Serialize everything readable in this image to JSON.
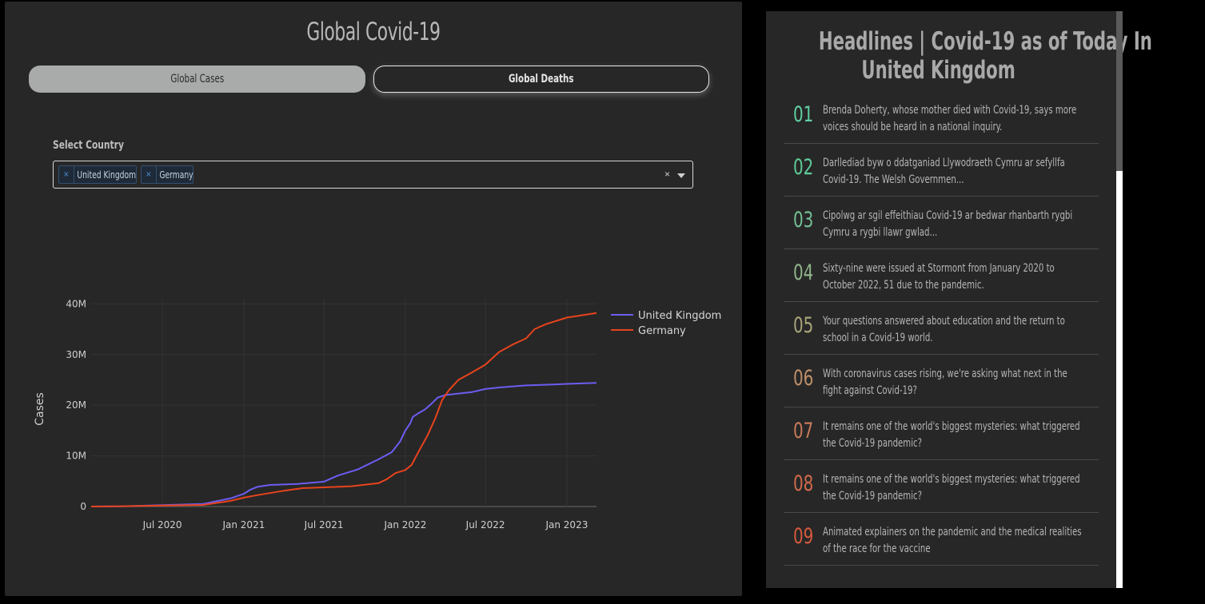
{
  "left": {
    "title": "Global Covid-19",
    "tabs": [
      {
        "label": "Global Cases",
        "active": true
      },
      {
        "label": "Global Deaths",
        "active": false
      }
    ],
    "select_label": "Select Country",
    "selected_countries": [
      "United Kingdom",
      "Germany"
    ],
    "clear_glyph": "×",
    "chip_remove_glyph": "×"
  },
  "chart_data": {
    "type": "line",
    "ylabel": "Cases",
    "xlabel": "",
    "y_tick_labels": [
      "0",
      "10M",
      "20M",
      "30M",
      "40M"
    ],
    "y_tick_values": [
      0,
      10000000,
      20000000,
      30000000,
      40000000
    ],
    "x_tick_labels": [
      "Jul 2020",
      "Jan 2021",
      "Jul 2021",
      "Jan 2022",
      "Jul 2022",
      "Jan 2023"
    ],
    "x_tick_dates": [
      "2020-07-01",
      "2021-01-01",
      "2021-07-01",
      "2022-01-01",
      "2022-07-01",
      "2023-01-01"
    ],
    "xlim": [
      "2020-01-22",
      "2023-03-09"
    ],
    "ylim": [
      0,
      41000000
    ],
    "legend_position": "top-right",
    "grid": true,
    "series": [
      {
        "name": "United Kingdom",
        "color": "#6c5df2",
        "points": [
          [
            "2020-01-22",
            0
          ],
          [
            "2020-04-01",
            30000
          ],
          [
            "2020-07-01",
            290000
          ],
          [
            "2020-10-01",
            500000
          ],
          [
            "2020-12-01",
            1600000
          ],
          [
            "2021-01-01",
            2500000
          ],
          [
            "2021-01-15",
            3300000
          ],
          [
            "2021-02-01",
            3900000
          ],
          [
            "2021-03-01",
            4250000
          ],
          [
            "2021-05-01",
            4450000
          ],
          [
            "2021-07-01",
            4900000
          ],
          [
            "2021-08-01",
            6100000
          ],
          [
            "2021-09-15",
            7300000
          ],
          [
            "2021-11-01",
            9300000
          ],
          [
            "2021-12-01",
            10700000
          ],
          [
            "2021-12-20",
            12800000
          ],
          [
            "2022-01-01",
            15000000
          ],
          [
            "2022-01-12",
            16400000
          ],
          [
            "2022-01-18",
            17700000
          ],
          [
            "2022-02-01",
            18500000
          ],
          [
            "2022-02-15",
            19200000
          ],
          [
            "2022-03-01",
            20300000
          ],
          [
            "2022-03-15",
            21500000
          ],
          [
            "2022-04-01",
            22000000
          ],
          [
            "2022-05-01",
            22300000
          ],
          [
            "2022-06-01",
            22600000
          ],
          [
            "2022-07-01",
            23200000
          ],
          [
            "2022-08-01",
            23500000
          ],
          [
            "2022-10-01",
            23900000
          ],
          [
            "2022-12-01",
            24100000
          ],
          [
            "2023-01-01",
            24200000
          ],
          [
            "2023-03-09",
            24400000
          ]
        ]
      },
      {
        "name": "Germany",
        "color": "#e8431d",
        "points": [
          [
            "2020-01-22",
            0
          ],
          [
            "2020-04-01",
            70000
          ],
          [
            "2020-07-01",
            200000
          ],
          [
            "2020-10-01",
            320000
          ],
          [
            "2020-12-01",
            1100000
          ],
          [
            "2021-01-01",
            1750000
          ],
          [
            "2021-02-01",
            2250000
          ],
          [
            "2021-04-01",
            3100000
          ],
          [
            "2021-05-15",
            3650000
          ],
          [
            "2021-07-01",
            3780000
          ],
          [
            "2021-09-01",
            4000000
          ],
          [
            "2021-11-01",
            4600000
          ],
          [
            "2021-11-20",
            5400000
          ],
          [
            "2021-12-10",
            6600000
          ],
          [
            "2022-01-01",
            7200000
          ],
          [
            "2022-01-15",
            8200000
          ],
          [
            "2022-02-01",
            11000000
          ],
          [
            "2022-02-20",
            14000000
          ],
          [
            "2022-03-10",
            17500000
          ],
          [
            "2022-03-25",
            21000000
          ],
          [
            "2022-04-10",
            23000000
          ],
          [
            "2022-05-01",
            25000000
          ],
          [
            "2022-06-01",
            26500000
          ],
          [
            "2022-07-01",
            28000000
          ],
          [
            "2022-08-01",
            30500000
          ],
          [
            "2022-09-01",
            32000000
          ],
          [
            "2022-10-01",
            33200000
          ],
          [
            "2022-10-20",
            35000000
          ],
          [
            "2022-11-15",
            36000000
          ],
          [
            "2023-01-01",
            37300000
          ],
          [
            "2023-03-09",
            38200000
          ]
        ]
      }
    ]
  },
  "right": {
    "title_line1": "Headlines | Covid-19 as of Today In",
    "title_line2": "United Kingdom",
    "news": [
      {
        "num": "01",
        "color": "#5fd0a2",
        "text": "Brenda Doherty, whose mother died with Covid-19, says more voices should be heard in a national inquiry."
      },
      {
        "num": "02",
        "color": "#5fcc99",
        "text": "Darllediad byw o ddatganiad Llywodraeth Cymru ar sefyllfa Covid-19. The Welsh Governmen..."
      },
      {
        "num": "03",
        "color": "#74c095",
        "text": "Cipolwg ar sgil effeithiau Covid-19 ar bedwar rhanbarth rygbi Cymru a rygbi llawr gwlad..."
      },
      {
        "num": "04",
        "color": "#8fb488",
        "text": "Sixty-nine were issued at Stormont from January 2020 to October 2022, 51 due to the pandemic."
      },
      {
        "num": "05",
        "color": "#a8a57a",
        "text": "Your questions answered about education and the return to school in a Covid-19 world."
      },
      {
        "num": "06",
        "color": "#bd8f6a",
        "text": "With coronavirus cases rising, we're asking what next in the fight against Covid-19?"
      },
      {
        "num": "07",
        "color": "#c97a5a",
        "text": "It remains one of the world's biggest mysteries: what triggered the Covid-19 pandemic?"
      },
      {
        "num": "08",
        "color": "#d06a4b",
        "text": "It remains one of the world's biggest mysteries: what triggered the Covid-19 pandemic?"
      },
      {
        "num": "09",
        "color": "#d65a3d",
        "text": "Animated explainers on the pandemic and the medical realities of the race for the vaccine"
      }
    ]
  }
}
